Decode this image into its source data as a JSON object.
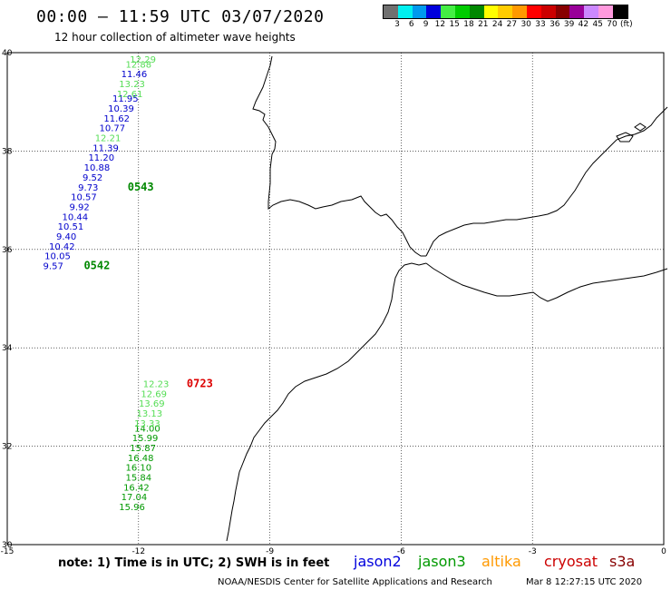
{
  "title": "00:00 – 11:59 UTC 03/07/2020",
  "subtitle": "12 hour collection of altimeter wave heights",
  "legend": {
    "colors": [
      "#707070",
      "#00f0f0",
      "#0099ee",
      "#0000dd",
      "#44ee44",
      "#00cc00",
      "#008800",
      "#ffff00",
      "#ffcc00",
      "#ff9900",
      "#ff0000",
      "#cc0000",
      "#880000",
      "#990099",
      "#cc88ff",
      "#ff99dd",
      "#000000"
    ],
    "labels": [
      "3",
      "6",
      "9",
      "12",
      "15",
      "18",
      "21",
      "24",
      "27",
      "30",
      "33",
      "36",
      "39",
      "42",
      "45",
      "70",
      "(ft)"
    ]
  },
  "axes": {
    "lat_labels": [
      "40",
      "38",
      "36",
      "34",
      "32",
      "30"
    ],
    "lon_labels": [
      "-15",
      "-12",
      "-9",
      "-6",
      "-3",
      "0"
    ]
  },
  "chart_data": {
    "type": "scatter",
    "x_axis": "longitude",
    "y_axis": "latitude",
    "xlim": [
      -15,
      0
    ],
    "ylim": [
      30,
      40
    ],
    "series": [
      {
        "name": "jason2",
        "color": "#0000cc",
        "points": [
          {
            "lon": -12.1,
            "lat": 39.5,
            "swh": "11.46"
          },
          {
            "lon": -12.3,
            "lat": 39.0,
            "swh": "11.95"
          },
          {
            "lon": -12.4,
            "lat": 38.8,
            "swh": "10.39"
          },
          {
            "lon": -12.5,
            "lat": 38.6,
            "swh": "11.62"
          },
          {
            "lon": -12.6,
            "lat": 38.4,
            "swh": "10.77"
          },
          {
            "lon": -12.75,
            "lat": 38.0,
            "swh": "11.39"
          },
          {
            "lon": -12.85,
            "lat": 37.8,
            "swh": "11.20"
          },
          {
            "lon": -12.95,
            "lat": 37.6,
            "swh": "10.88"
          },
          {
            "lon": -13.05,
            "lat": 37.4,
            "swh": "9.52"
          },
          {
            "lon": -13.15,
            "lat": 37.2,
            "swh": "9.73"
          },
          {
            "lon": -13.25,
            "lat": 37.0,
            "swh": "10.57"
          },
          {
            "lon": -13.35,
            "lat": 36.8,
            "swh": "9.92"
          },
          {
            "lon": -13.45,
            "lat": 36.6,
            "swh": "10.44"
          },
          {
            "lon": -13.55,
            "lat": 36.4,
            "swh": "10.51"
          },
          {
            "lon": -13.65,
            "lat": 36.2,
            "swh": "9.40"
          },
          {
            "lon": -13.75,
            "lat": 36.0,
            "swh": "10.42"
          },
          {
            "lon": -13.85,
            "lat": 35.8,
            "swh": "10.05"
          },
          {
            "lon": -13.95,
            "lat": 35.6,
            "swh": "9.57"
          }
        ]
      },
      {
        "name": "jason3",
        "color": "#009900",
        "points": [
          {
            "lon": -11.8,
            "lat": 32.3,
            "swh": "14.00"
          },
          {
            "lon": -11.85,
            "lat": 32.1,
            "swh": "15.99"
          },
          {
            "lon": -11.9,
            "lat": 31.9,
            "swh": "15.87"
          },
          {
            "lon": -11.95,
            "lat": 31.7,
            "swh": "16.48"
          },
          {
            "lon": -12.0,
            "lat": 31.5,
            "swh": "16.10"
          },
          {
            "lon": -12.0,
            "lat": 31.3,
            "swh": "15.84"
          },
          {
            "lon": -12.05,
            "lat": 31.1,
            "swh": "16.42"
          },
          {
            "lon": -12.1,
            "lat": 30.9,
            "swh": "17.04"
          },
          {
            "lon": -12.15,
            "lat": 30.7,
            "swh": "15.96"
          }
        ]
      },
      {
        "name": "jason3-light",
        "color": "#55dd55",
        "points": [
          {
            "lon": -11.9,
            "lat": 39.8,
            "swh": "12.29"
          },
          {
            "lon": -12.0,
            "lat": 39.7,
            "swh": "12.88"
          },
          {
            "lon": -12.15,
            "lat": 39.3,
            "swh": "13.23"
          },
          {
            "lon": -12.2,
            "lat": 39.1,
            "swh": "12.61"
          },
          {
            "lon": -12.7,
            "lat": 38.2,
            "swh": "12.21"
          },
          {
            "lon": -11.6,
            "lat": 33.2,
            "swh": "12.23"
          },
          {
            "lon": -11.65,
            "lat": 33.0,
            "swh": "12.69"
          },
          {
            "lon": -11.7,
            "lat": 32.8,
            "swh": "13.69"
          },
          {
            "lon": -11.75,
            "lat": 32.6,
            "swh": "13.13"
          },
          {
            "lon": -11.8,
            "lat": 32.4,
            "swh": "13.33"
          }
        ]
      }
    ],
    "pass_times": [
      {
        "label": "0543",
        "color": "#008800",
        "lon": -12.25,
        "lat": 37.2
      },
      {
        "label": "0542",
        "color": "#008800",
        "lon": -13.25,
        "lat": 35.6
      },
      {
        "label": "0723",
        "color": "#dd0000",
        "lon": -10.9,
        "lat": 33.2
      }
    ]
  },
  "footer": {
    "note": "note:  1) Time is in UTC;  2) SWH is in feet",
    "satellites": [
      {
        "name": "jason2",
        "color": "#0000dd"
      },
      {
        "name": "jason3",
        "color": "#009900"
      },
      {
        "name": "altika",
        "color": "#ff9900"
      },
      {
        "name": "cryosat",
        "color": "#cc0000"
      },
      {
        "name": "s3a",
        "color": "#880000"
      }
    ],
    "credit": "NOAA/NESDIS Center for Satellite Applications and Research",
    "datestamp": "Mar  8 12:27:15 UTC 2020"
  }
}
